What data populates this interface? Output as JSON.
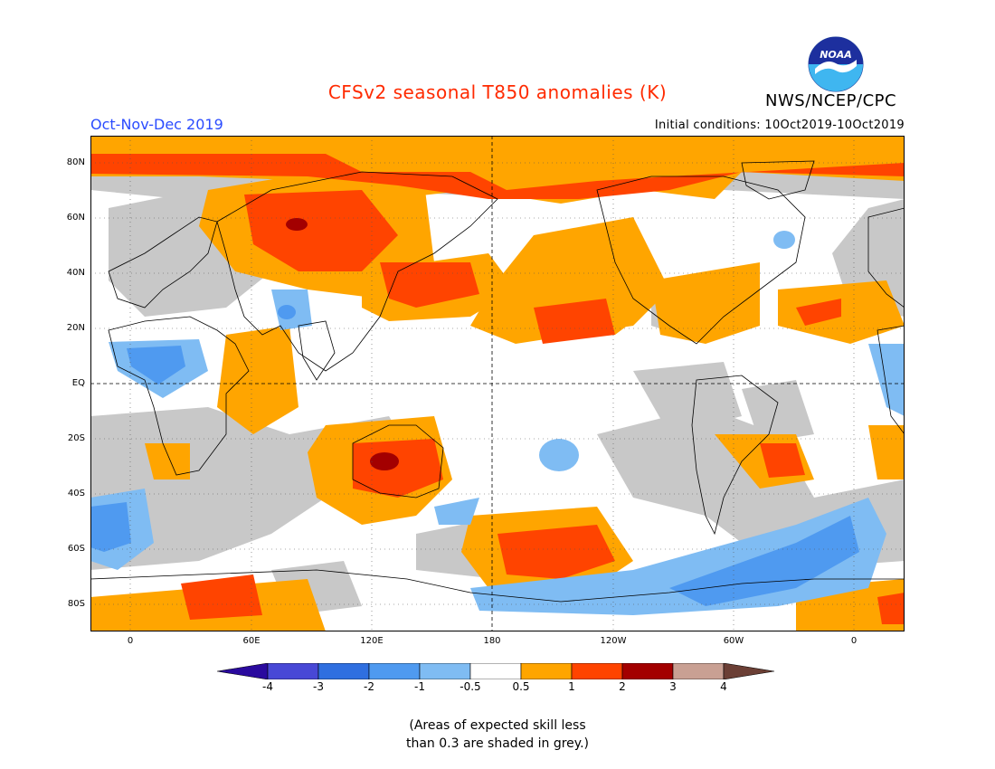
{
  "header": {
    "title": "CFSv2 seasonal T850 anomalies (K)",
    "season": "Oct-Nov-Dec 2019",
    "initial_conditions": "Initial conditions: 10Oct2019-10Oct2019",
    "agency": "NWS/NCEP/CPC",
    "logo_text": "NOAA"
  },
  "axes": {
    "lat_labels": [
      "80N",
      "60N",
      "40N",
      "20N",
      "EQ",
      "20S",
      "40S",
      "60S",
      "80S"
    ],
    "lon_labels": [
      "0",
      "60E",
      "120E",
      "180",
      "120W",
      "60W",
      "0"
    ]
  },
  "colorbar": {
    "colors": [
      "#2a0a9e",
      "#4848d6",
      "#2f6fe0",
      "#4f9af0",
      "#7fbcf3",
      "#ffffff",
      "#ffa500",
      "#ff4400",
      "#a30000",
      "#c9a093",
      "#6b3f35"
    ],
    "tick_labels": [
      "-4",
      "-3",
      "-2",
      "-1",
      "-0.5",
      "0.5",
      "1",
      "2",
      "3",
      "4"
    ],
    "grey_color": "#c8c8c8"
  },
  "note": {
    "line1": "(Areas of expected skill less",
    "line2": "than 0.3 are shaded in grey.)"
  }
}
